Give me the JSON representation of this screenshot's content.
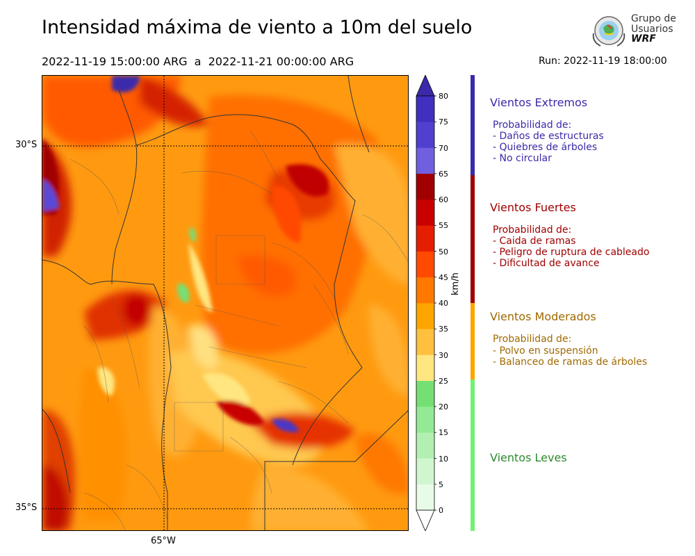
{
  "header": {
    "title": "Intensidad máxima de viento a 10m del suelo",
    "period": "2022-11-19 15:00:00 ARG  a  2022-11-21 00:00:00 ARG",
    "run": "Run: 2022-11-19 18:00:00"
  },
  "logo": {
    "line1": "Grupo de",
    "line2": "Usuarios",
    "line3": "WRF"
  },
  "map": {
    "lat_labels": [
      "30°S",
      "35°S"
    ],
    "lon_labels": [
      "65°W"
    ]
  },
  "colorbar": {
    "unit": "km/h",
    "ticks": [
      "0",
      "5",
      "10",
      "15",
      "20",
      "25",
      "30",
      "35",
      "40",
      "45",
      "50",
      "55",
      "60",
      "65",
      "70",
      "75",
      "80"
    ],
    "colors": [
      "#e8fbe8",
      "#d0f6d0",
      "#b2f0b2",
      "#94ea94",
      "#74e074",
      "#ffe680",
      "#ffc040",
      "#ffa500",
      "#ff7800",
      "#ff4a00",
      "#e51e00",
      "#c80000",
      "#a00000",
      "#7060e0",
      "#5040d0",
      "#4030c0"
    ],
    "cap_color_low": "#ffffff",
    "cap_color_high": "#3a2aaa"
  },
  "categories": [
    {
      "title": "Vientos Extremos",
      "color": "#3a2aaa",
      "head": "Probabilidad de:",
      "items": [
        "- Daños de estructuras",
        "- Quiebres de árboles",
        "- No circular"
      ]
    },
    {
      "title": "Vientos Fuertes",
      "color": "#a00000",
      "head": "Probabilidad de:",
      "items": [
        "- Caida de ramas",
        "- Peligro de ruptura de cableado",
        "- Dificultad de avance"
      ]
    },
    {
      "title": "Vientos Moderados",
      "color": "#a06a00",
      "bar_color": "#ffa500",
      "head": "Probabilidad de:",
      "items": [
        "- Polvo en suspensión",
        "- Balanceo de ramas de árboles"
      ]
    },
    {
      "title": "Vientos Leves",
      "color": "#2e8a2e",
      "bar_color": "#74f074",
      "head": "",
      "items": []
    }
  ]
}
